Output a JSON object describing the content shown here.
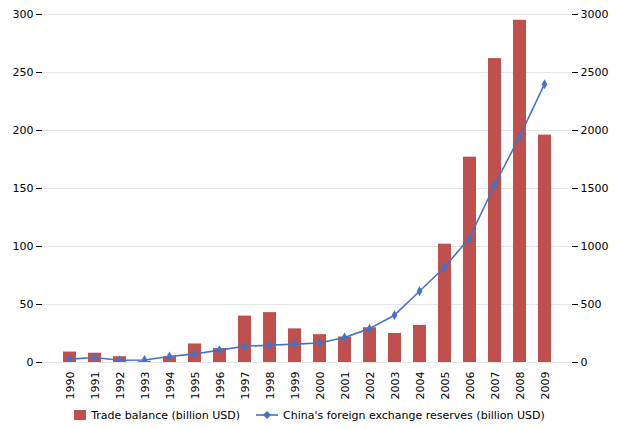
{
  "chart_data": {
    "type": "bar",
    "categories": [
      "1990",
      "1991",
      "1992",
      "1993",
      "1994",
      "1995",
      "1996",
      "1997",
      "1998",
      "1999",
      "2000",
      "2001",
      "2002",
      "2003",
      "2004",
      "2005",
      "2006",
      "2007",
      "2008",
      "2009"
    ],
    "series": [
      {
        "name": "Trade balance (billion USD)",
        "type": "bar",
        "color": "#c0504d",
        "values": [
          9,
          8,
          5,
          1,
          5,
          16,
          12,
          40,
          43,
          29,
          24,
          22,
          30,
          25,
          32,
          102,
          177,
          262,
          295,
          196
        ]
      },
      {
        "name": "China's foreign exchange reserves (billion USD)",
        "type": "line",
        "color": "#4472c4",
        "marker": "diamond",
        "axis": "y2",
        "values": [
          29,
          43,
          19,
          22,
          52,
          74,
          107,
          140,
          149,
          158,
          168,
          216,
          292,
          408,
          614,
          821,
          1073,
          1528,
          1946,
          2399
        ]
      }
    ],
    "ylim": [
      0,
      300
    ],
    "yticks": [
      0,
      50,
      100,
      150,
      200,
      250,
      300
    ],
    "y2lim": [
      0,
      3000
    ],
    "y2ticks": [
      0,
      500,
      1000,
      1500,
      2000,
      2500,
      3000
    ],
    "grid": true,
    "legend": "bottom"
  }
}
